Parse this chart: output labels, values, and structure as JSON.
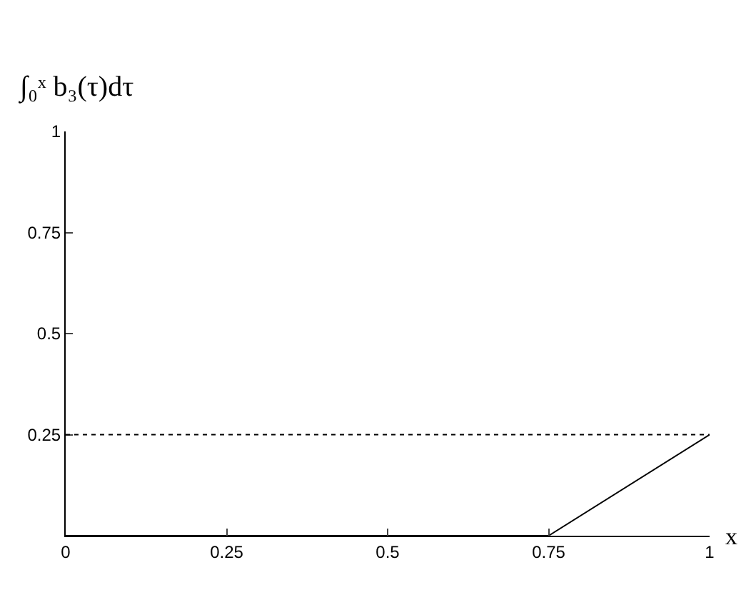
{
  "chart_data": {
    "type": "line",
    "ylabel": "∫₀ˣ b₃(τ)dτ",
    "xlabel": "x",
    "x": [
      0,
      0.75,
      1
    ],
    "series": [
      {
        "color": "#000000",
        "values": [
          0,
          0,
          0.25
        ]
      }
    ],
    "xlim": [
      0,
      1
    ],
    "xticks": [
      0,
      0.25,
      0.5,
      0.75,
      1
    ],
    "ylim": [
      0,
      1
    ],
    "yticks": [
      0.25,
      0.5,
      0.75,
      1
    ],
    "ref_lines": [
      {
        "axis": "y",
        "value": 0.25,
        "line_style": "dotted",
        "color": "#000000"
      }
    ],
    "grid": false,
    "legend": false
  }
}
